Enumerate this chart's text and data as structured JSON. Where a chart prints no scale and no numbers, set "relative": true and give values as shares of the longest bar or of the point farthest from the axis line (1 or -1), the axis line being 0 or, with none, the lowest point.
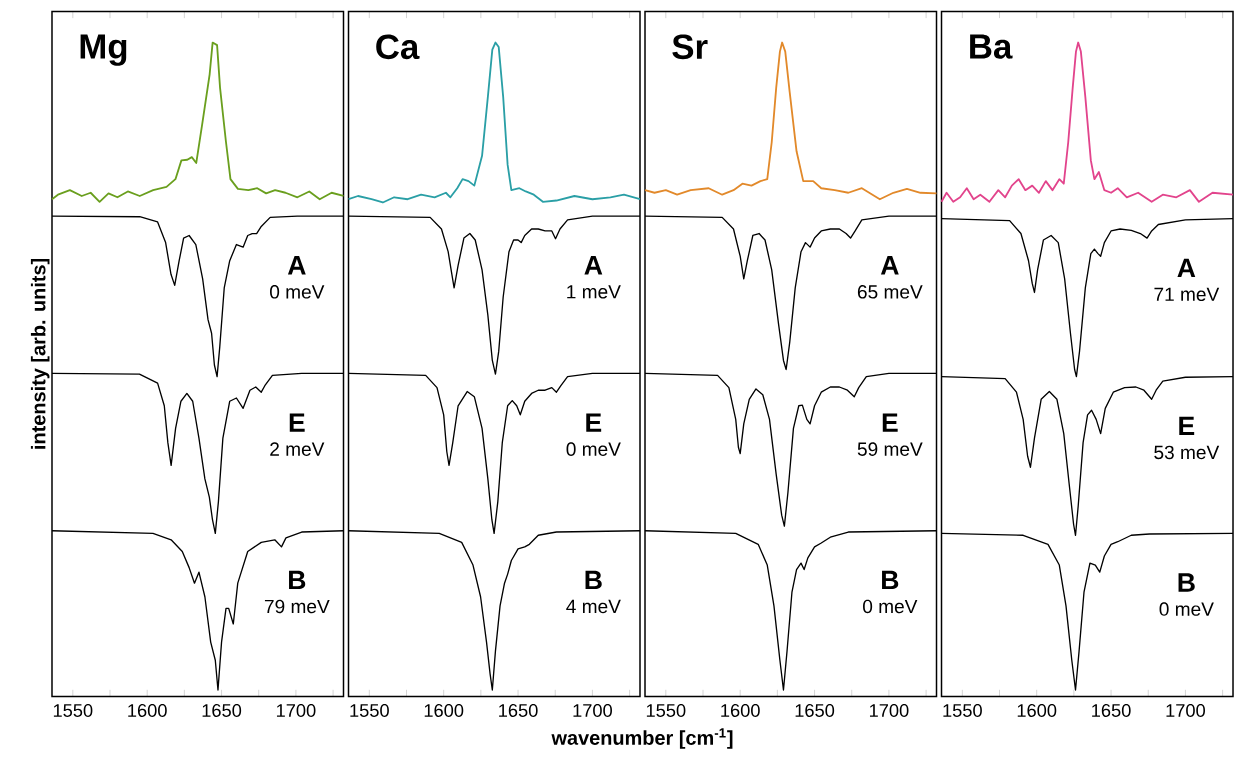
{
  "chart_data": [
    {
      "type": "line",
      "title": "Mg",
      "ylabel": "intensity [arb. units]",
      "relative": true,
      "xlim": [
        1536,
        1732
      ],
      "xticks": [
        1550,
        {
          "value": 1575,
          "label": null
        },
        1600,
        {
          "value": 1625,
          "label": null
        },
        1650,
        {
          "value": 1675,
          "label": null
        },
        1700,
        {
          "value": 1725,
          "label": null
        }
      ],
      "series": [
        {
          "color": "#6a9f1e",
          "x": [
            1536,
            1540,
            1548,
            1556,
            1562,
            1568,
            1574,
            1580,
            1587,
            1595,
            1604,
            1613,
            1619,
            1623,
            1627,
            1630,
            1633,
            1637,
            1642,
            1644,
            1647,
            1649,
            1653,
            1656,
            1661,
            1668,
            1674,
            1680,
            1686,
            1693,
            1701,
            1709,
            1716,
            1724,
            1732
          ],
          "values": [
            0.758,
            0.765,
            0.772,
            0.763,
            0.768,
            0.754,
            0.767,
            0.761,
            0.77,
            0.763,
            0.772,
            0.777,
            0.789,
            0.818,
            0.819,
            0.823,
            0.814,
            0.874,
            0.951,
            1.0,
            0.996,
            0.93,
            0.846,
            0.789,
            0.774,
            0.772,
            0.775,
            0.767,
            0.772,
            0.768,
            0.761,
            0.77,
            0.758,
            0.768,
            0.763
          ]
        },
        {
          "color": "#000000",
          "x": [
            1536,
            1595,
            1607,
            1612.4,
            1616,
            1618.5,
            1621.5,
            1624.5,
            1628.2,
            1632.7,
            1637.3,
            1640.9,
            1643.3,
            1645.2,
            1647,
            1648.8,
            1651.8,
            1655.5,
            1660,
            1664.5,
            1667.6,
            1670.6,
            1673.6,
            1676.7,
            1682.7,
            1700.9,
            1732
          ],
          "values": [
            0.732,
            0.731,
            0.723,
            0.691,
            0.642,
            0.625,
            0.663,
            0.698,
            0.702,
            0.688,
            0.635,
            0.572,
            0.551,
            0.502,
            0.484,
            0.53,
            0.621,
            0.663,
            0.688,
            0.684,
            0.702,
            0.705,
            0.705,
            0.716,
            0.73,
            0.732,
            0.732
          ]
        },
        {
          "color": "#000000",
          "x": [
            1536,
            1594.8,
            1607,
            1611.5,
            1613.9,
            1616.1,
            1619.1,
            1622.7,
            1626.7,
            1630.6,
            1634.8,
            1638.8,
            1641.8,
            1643.9,
            1645.8,
            1647.9,
            1650.9,
            1655.5,
            1660,
            1664.5,
            1669.1,
            1673,
            1676.7,
            1679.1,
            1684.2,
            1703.9,
            1732
          ],
          "values": [
            0.489,
            0.488,
            0.474,
            0.439,
            0.382,
            0.347,
            0.404,
            0.446,
            0.458,
            0.446,
            0.389,
            0.326,
            0.298,
            0.263,
            0.242,
            0.291,
            0.389,
            0.446,
            0.451,
            0.435,
            0.463,
            0.468,
            0.46,
            0.47,
            0.486,
            0.489,
            0.489
          ]
        },
        {
          "color": "#000000",
          "x": [
            1536,
            1603.9,
            1616.1,
            1623.6,
            1628.2,
            1631.8,
            1634.8,
            1638.8,
            1642.7,
            1645.8,
            1647.6,
            1650,
            1653,
            1654.8,
            1657.9,
            1660.9,
            1667.6,
            1676.7,
            1685.8,
            1690.3,
            1693.3,
            1703.9,
            1732
          ],
          "values": [
            0.246,
            0.242,
            0.232,
            0.214,
            0.189,
            0.165,
            0.182,
            0.144,
            0.074,
            0.046,
            0,
            0.074,
            0.126,
            0.126,
            0.102,
            0.165,
            0.214,
            0.228,
            0.232,
            0.221,
            0.235,
            0.244,
            0.246
          ]
        }
      ],
      "annotations": [
        "A",
        "0 meV",
        "E",
        "2 meV",
        "B",
        "79 meV"
      ]
    },
    {
      "type": "line",
      "title": "Ca",
      "xlabel": "wavenumber [cm$^{-1}$]",
      "relative": true,
      "xlim": [
        1536,
        1732
      ],
      "xticks": [
        1550,
        {
          "value": 1575,
          "label": null
        },
        1600,
        {
          "value": 1625,
          "label": null
        },
        1650,
        {
          "value": 1675,
          "label": null
        },
        1700,
        {
          "value": 1725,
          "label": null
        }
      ],
      "series": [
        {
          "color": "#2a9fa6",
          "x": [
            1536,
            1542.4,
            1551.5,
            1559.1,
            1566.7,
            1575.8,
            1584.8,
            1593.9,
            1601.5,
            1604.5,
            1609.1,
            1612.7,
            1616.7,
            1620.6,
            1625.8,
            1629.7,
            1632.7,
            1634.8,
            1637,
            1640,
            1643,
            1645.5,
            1650.9,
            1655.2,
            1660.6,
            1666.7,
            1675.8,
            1687.9,
            1700,
            1712.1,
            1721.2,
            1732
          ],
          "values": [
            0.758,
            0.763,
            0.758,
            0.753,
            0.761,
            0.758,
            0.765,
            0.761,
            0.768,
            0.761,
            0.775,
            0.789,
            0.786,
            0.779,
            0.825,
            0.916,
            0.989,
            1,
            0.993,
            0.916,
            0.811,
            0.772,
            0.775,
            0.77,
            0.765,
            0.754,
            0.756,
            0.763,
            0.758,
            0.761,
            0.765,
            0.758
          ]
        },
        {
          "color": "#000000",
          "x": [
            1536,
            1590.9,
            1598.5,
            1603,
            1605.5,
            1607,
            1609.7,
            1613.6,
            1617.6,
            1621.2,
            1625.8,
            1629.7,
            1632.7,
            1634.8,
            1637,
            1640,
            1643.9,
            1647,
            1650,
            1652.1,
            1654.5,
            1659.1,
            1663.6,
            1668.2,
            1672.7,
            1675.2,
            1678.2,
            1683.3,
            1700,
            1732
          ],
          "values": [
            0.732,
            0.73,
            0.712,
            0.677,
            0.642,
            0.621,
            0.656,
            0.698,
            0.705,
            0.695,
            0.649,
            0.579,
            0.509,
            0.488,
            0.523,
            0.607,
            0.677,
            0.695,
            0.695,
            0.691,
            0.702,
            0.712,
            0.712,
            0.709,
            0.709,
            0.697,
            0.712,
            0.726,
            0.732,
            0.732
          ]
        },
        {
          "color": "#000000",
          "x": [
            1536,
            1587.9,
            1595.5,
            1600,
            1602.1,
            1603.6,
            1606.1,
            1609.7,
            1615.8,
            1620.6,
            1625.8,
            1629.7,
            1632.4,
            1633.9,
            1636.4,
            1639.4,
            1643,
            1646.1,
            1649.1,
            1651.5,
            1654.5,
            1659.1,
            1663.6,
            1668.2,
            1672.7,
            1675.8,
            1678.8,
            1683.3,
            1700,
            1732
          ],
          "values": [
            0.489,
            0.486,
            0.467,
            0.425,
            0.368,
            0.347,
            0.382,
            0.439,
            0.461,
            0.453,
            0.404,
            0.326,
            0.263,
            0.242,
            0.291,
            0.382,
            0.439,
            0.447,
            0.439,
            0.425,
            0.446,
            0.458,
            0.463,
            0.463,
            0.467,
            0.46,
            0.47,
            0.484,
            0.489,
            0.489
          ]
        },
        {
          "color": "#000000",
          "x": [
            1536,
            1597,
            1612.1,
            1619.7,
            1624.8,
            1628.8,
            1631.2,
            1632.7,
            1634.8,
            1637.9,
            1640.9,
            1643,
            1645.5,
            1650,
            1654.5,
            1657.6,
            1663.6,
            1675.8,
            1732
          ],
          "values": [
            0.246,
            0.242,
            0.228,
            0.193,
            0.144,
            0.074,
            0.025,
            0,
            0.06,
            0.13,
            0.165,
            0.179,
            0.2,
            0.218,
            0.221,
            0.225,
            0.239,
            0.244,
            0.246
          ]
        }
      ],
      "annotations": [
        "A",
        "1 meV",
        "E",
        "0 meV",
        "B",
        "4 meV"
      ]
    },
    {
      "type": "line",
      "title": "Sr",
      "relative": true,
      "xlim": [
        1536,
        1732
      ],
      "xticks": [
        1550,
        {
          "value": 1575,
          "label": null
        },
        1600,
        {
          "value": 1625,
          "label": null
        },
        1650,
        {
          "value": 1675,
          "label": null
        },
        1700,
        {
          "value": 1725,
          "label": null
        }
      ],
      "series": [
        {
          "color": "#e2892a",
          "x": [
            1536,
            1542.4,
            1550,
            1557.6,
            1566.7,
            1578.8,
            1587.9,
            1595.5,
            1601.5,
            1607.6,
            1613.6,
            1618.2,
            1621.2,
            1624.2,
            1626.7,
            1628.2,
            1630.3,
            1633.3,
            1637.9,
            1642.4,
            1649.1,
            1654.5,
            1663.6,
            1672.7,
            1681.8,
            1693.9,
            1703,
            1712.1,
            1721.2,
            1732
          ],
          "values": [
            0.772,
            0.768,
            0.772,
            0.765,
            0.772,
            0.775,
            0.765,
            0.772,
            0.782,
            0.779,
            0.786,
            0.789,
            0.846,
            0.93,
            0.986,
            1,
            0.986,
            0.923,
            0.832,
            0.786,
            0.786,
            0.775,
            0.772,
            0.768,
            0.775,
            0.758,
            0.768,
            0.774,
            0.768,
            0.767
          ]
        },
        {
          "color": "#000000",
          "x": [
            1536,
            1587.9,
            1595.5,
            1600,
            1602.4,
            1604.8,
            1608.5,
            1612.7,
            1616.7,
            1621.2,
            1625.8,
            1629.1,
            1630.9,
            1633.3,
            1637,
            1640.9,
            1643.9,
            1647,
            1650,
            1654.5,
            1660.6,
            1666.7,
            1671.2,
            1674.2,
            1677.3,
            1681.8,
            1700,
            1732
          ],
          "values": [
            0.732,
            0.73,
            0.712,
            0.67,
            0.635,
            0.663,
            0.702,
            0.705,
            0.695,
            0.649,
            0.565,
            0.509,
            0.495,
            0.537,
            0.621,
            0.677,
            0.691,
            0.684,
            0.698,
            0.709,
            0.712,
            0.712,
            0.705,
            0.698,
            0.709,
            0.726,
            0.732,
            0.732
          ]
        },
        {
          "color": "#000000",
          "x": [
            1536,
            1584.8,
            1592.4,
            1597,
            1598.8,
            1600,
            1602.4,
            1606.1,
            1610.6,
            1615.2,
            1619.7,
            1624.2,
            1627.9,
            1629.7,
            1632.1,
            1635.8,
            1639.4,
            1641.8,
            1644.8,
            1647,
            1650,
            1654.5,
            1660.6,
            1666.7,
            1672.1,
            1676.7,
            1679.7,
            1684.8,
            1700,
            1732
          ],
          "values": [
            0.489,
            0.486,
            0.467,
            0.418,
            0.375,
            0.365,
            0.411,
            0.449,
            0.465,
            0.456,
            0.418,
            0.333,
            0.27,
            0.253,
            0.305,
            0.404,
            0.439,
            0.44,
            0.418,
            0.411,
            0.439,
            0.46,
            0.468,
            0.468,
            0.463,
            0.453,
            0.467,
            0.484,
            0.489,
            0.489
          ]
        },
        {
          "color": "#000000",
          "x": [
            1536,
            1597,
            1612.1,
            1618.2,
            1622.7,
            1626.7,
            1629.1,
            1631.5,
            1634.8,
            1637.9,
            1640.9,
            1643,
            1645.5,
            1650,
            1654.5,
            1660.6,
            1672.7,
            1732
          ],
          "values": [
            0.246,
            0.242,
            0.225,
            0.193,
            0.13,
            0.046,
            0,
            0.06,
            0.151,
            0.186,
            0.196,
            0.186,
            0.204,
            0.221,
            0.227,
            0.236,
            0.244,
            0.246
          ]
        }
      ],
      "annotations": [
        "A",
        "65 meV",
        "E",
        "59 meV",
        "B",
        "0 meV"
      ]
    },
    {
      "type": "line",
      "title": "Ba",
      "relative": true,
      "xlim": [
        1536,
        1732
      ],
      "xticks": [
        1550,
        {
          "value": 1575,
          "label": null
        },
        1600,
        {
          "value": 1625,
          "label": null
        },
        1650,
        {
          "value": 1675,
          "label": null
        },
        1700,
        {
          "value": 1725,
          "label": null
        }
      ],
      "series": [
        {
          "color": "#e2448c",
          "x": [
            1536,
            1539.4,
            1543.9,
            1548.5,
            1553,
            1557.6,
            1562.1,
            1568.2,
            1574.2,
            1578.8,
            1583.3,
            1587.9,
            1592.4,
            1597,
            1601.5,
            1606.1,
            1610.6,
            1615.2,
            1618.2,
            1621.2,
            1624.2,
            1626.4,
            1627.9,
            1629.7,
            1632.7,
            1636.4,
            1638.8,
            1641.8,
            1645.5,
            1650,
            1654.5,
            1660.6,
            1668.2,
            1677.3,
            1684.8,
            1693.9,
            1703,
            1709.1,
            1718.2,
            1732
          ],
          "values": [
            0.754,
            0.768,
            0.754,
            0.761,
            0.775,
            0.758,
            0.765,
            0.754,
            0.772,
            0.761,
            0.779,
            0.789,
            0.772,
            0.779,
            0.768,
            0.786,
            0.772,
            0.789,
            0.782,
            0.846,
            0.93,
            0.986,
            1,
            0.986,
            0.916,
            0.818,
            0.789,
            0.8,
            0.772,
            0.768,
            0.775,
            0.761,
            0.768,
            0.754,
            0.765,
            0.761,
            0.772,
            0.754,
            0.768,
            0.765
          ]
        },
        {
          "color": "#000000",
          "x": [
            1536,
            1581.8,
            1589.4,
            1594.5,
            1597,
            1598.5,
            1600.6,
            1604.5,
            1609.7,
            1614.5,
            1618.8,
            1622.7,
            1625.5,
            1626.7,
            1628.8,
            1632.7,
            1636.4,
            1638.8,
            1641.2,
            1643,
            1645.5,
            1650,
            1656.1,
            1663.6,
            1669.7,
            1674.2,
            1677.3,
            1681.8,
            1700,
            1732
          ],
          "values": [
            0.728,
            0.725,
            0.705,
            0.663,
            0.628,
            0.614,
            0.649,
            0.695,
            0.702,
            0.691,
            0.635,
            0.551,
            0.495,
            0.484,
            0.523,
            0.621,
            0.674,
            0.681,
            0.674,
            0.67,
            0.691,
            0.709,
            0.712,
            0.71,
            0.705,
            0.698,
            0.709,
            0.719,
            0.726,
            0.728
          ]
        },
        {
          "color": "#000000",
          "x": [
            1536,
            1578.8,
            1586.4,
            1590.9,
            1593.9,
            1595.8,
            1598.5,
            1603,
            1608.5,
            1613.6,
            1618.2,
            1621.8,
            1624.8,
            1626.1,
            1627.9,
            1631.2,
            1634.2,
            1636.9,
            1640,
            1643,
            1646.1,
            1651.5,
            1659.1,
            1666.7,
            1672.1,
            1677.3,
            1680.3,
            1684.8,
            1700,
            1732
          ],
          "values": [
            0.484,
            0.481,
            0.46,
            0.418,
            0.361,
            0.344,
            0.389,
            0.449,
            0.461,
            0.449,
            0.396,
            0.319,
            0.256,
            0.239,
            0.284,
            0.382,
            0.425,
            0.432,
            0.418,
            0.396,
            0.435,
            0.46,
            0.467,
            0.468,
            0.463,
            0.449,
            0.463,
            0.477,
            0.483,
            0.484
          ]
        },
        {
          "color": "#000000",
          "x": [
            1536,
            1590.9,
            1607.6,
            1615.2,
            1619.7,
            1623.6,
            1626.1,
            1628.5,
            1631.8,
            1635.8,
            1639.4,
            1642.4,
            1645.5,
            1650,
            1654.5,
            1663.6,
            1675.8,
            1732
          ],
          "values": [
            0.242,
            0.239,
            0.225,
            0.193,
            0.13,
            0.046,
            0,
            0.06,
            0.151,
            0.196,
            0.193,
            0.182,
            0.207,
            0.225,
            0.229,
            0.239,
            0.241,
            0.242
          ]
        }
      ],
      "annotations": [
        "A",
        "71 meV",
        "E",
        "53 meV",
        "B",
        "0 meV"
      ]
    }
  ]
}
